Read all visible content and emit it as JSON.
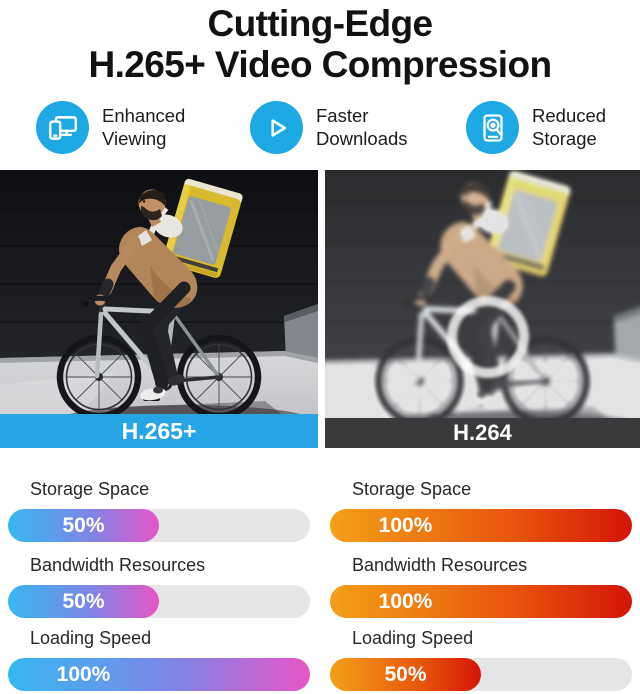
{
  "title": {
    "line1": "Cutting-Edge",
    "line2": "H.265+ Video Compression"
  },
  "features": [
    {
      "label": "Enhanced Viewing",
      "icon": "devices-icon"
    },
    {
      "label": "Faster Downloads",
      "icon": "play-icon"
    },
    {
      "label": "Reduced Storage",
      "icon": "storage-search-icon"
    }
  ],
  "comparison": {
    "left": {
      "codec": "H.265+",
      "banner_color": "#25a5e3",
      "image_style": "sharp colorful photo of delivery cyclist"
    },
    "right": {
      "codec": "H.264",
      "banner_color": "#3a3a3d",
      "image_style": "blurred washed-out photo with white ring artifact"
    }
  },
  "stats": {
    "left": {
      "bars": [
        {
          "label": "Storage Space",
          "value_label": "50%",
          "percent": 50
        },
        {
          "label": "Bandwidth Resources",
          "value_label": "50%",
          "percent": 50
        },
        {
          "label": "Loading Speed",
          "value_label": "100%",
          "percent": 100
        }
      ]
    },
    "right": {
      "bars": [
        {
          "label": "Storage Space",
          "value_label": "100%",
          "percent": 100
        },
        {
          "label": "Bandwidth Resources",
          "value_label": "100%",
          "percent": 100
        },
        {
          "label": "Loading Speed",
          "value_label": "50%",
          "percent": 50
        }
      ]
    }
  },
  "colors": {
    "accent_blue": "#1ea9e4",
    "banner_blue": "#25a5e3",
    "banner_dark": "#3a3a3d",
    "cool_gradient": [
      "#36b8f0",
      "#7f85e6",
      "#e756c6"
    ],
    "warm_gradient": [
      "#f4a019",
      "#d41408"
    ],
    "bar_track": "#e6e6e8",
    "title_text": "#121212"
  }
}
